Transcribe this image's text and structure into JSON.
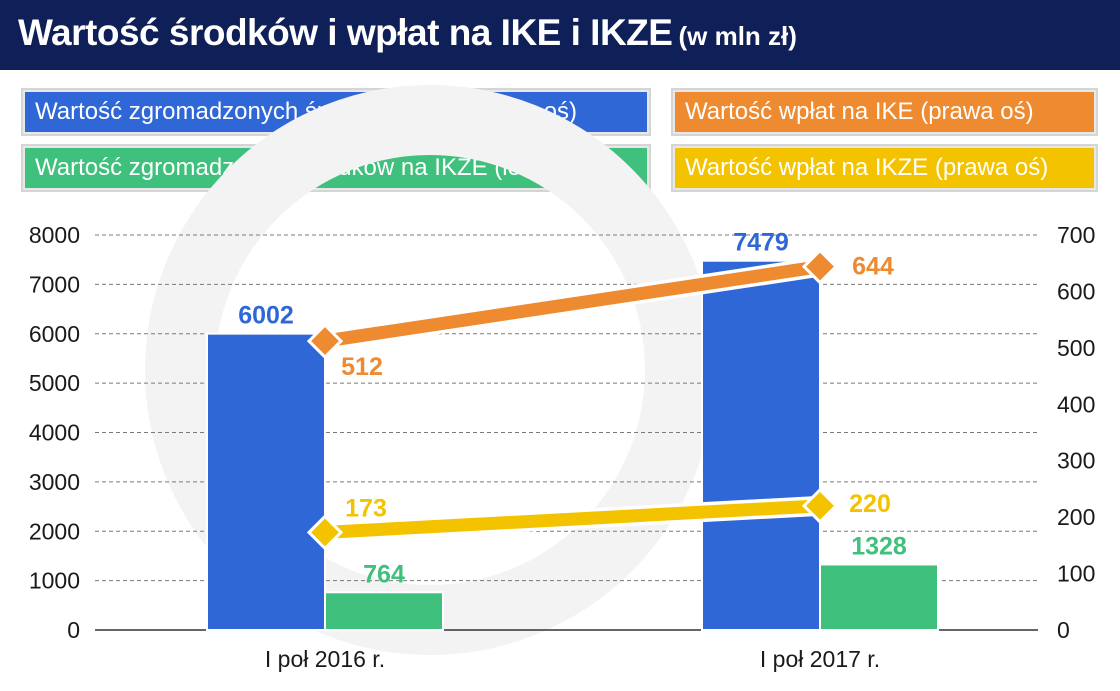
{
  "title": "Wartość środków i wpłat na IKE i IKZE",
  "title_unit": "(w mln zł)",
  "colors": {
    "title_bg": "#0f1f57",
    "ike_funds": "#2f68d6",
    "ikze_funds": "#3fc07c",
    "ike_payments": "#ee8a30",
    "ikze_payments": "#f4c300"
  },
  "legend": [
    {
      "label": "Wartość zgromadzonych środków na IKE (lewa oś)",
      "color": "#2f68d6"
    },
    {
      "label": "Wartość zgromadzonych środków na IKZE (lewa oś)",
      "color": "#3fc07c"
    },
    {
      "label": "Wartość wpłat na IKE (prawa oś)",
      "color": "#ee8a30"
    },
    {
      "label": "Wartość wpłat na IKZE (prawa oś)",
      "color": "#f4c300"
    }
  ],
  "chart_data": {
    "type": "bar",
    "categories": [
      "I poł 2016 r.",
      "I poł 2017 r."
    ],
    "series": [
      {
        "name": "Wartość zgromadzonych środków na IKE (lewa oś)",
        "type": "bar",
        "axis": "left",
        "values": [
          6002,
          7479
        ],
        "color": "#2f68d6"
      },
      {
        "name": "Wartość zgromadzonych środków na IKZE (lewa oś)",
        "type": "bar",
        "axis": "left",
        "values": [
          764,
          1328
        ],
        "color": "#3fc07c"
      },
      {
        "name": "Wartość wpłat na IKE (prawa oś)",
        "type": "line",
        "axis": "right",
        "values": [
          512,
          644
        ],
        "color": "#ee8a30"
      },
      {
        "name": "Wartość wpłat na IKZE (prawa oś)",
        "type": "line",
        "axis": "right",
        "values": [
          173,
          220
        ],
        "color": "#f4c300"
      }
    ],
    "y_left": {
      "min": 0,
      "max": 8000,
      "ticks": [
        0,
        1000,
        2000,
        3000,
        4000,
        5000,
        6000,
        7000,
        8000
      ]
    },
    "y_right": {
      "min": 0,
      "max": 700,
      "ticks": [
        0,
        100,
        200,
        300,
        400,
        500,
        600,
        700
      ]
    },
    "grid": true,
    "legend_position": "top"
  }
}
